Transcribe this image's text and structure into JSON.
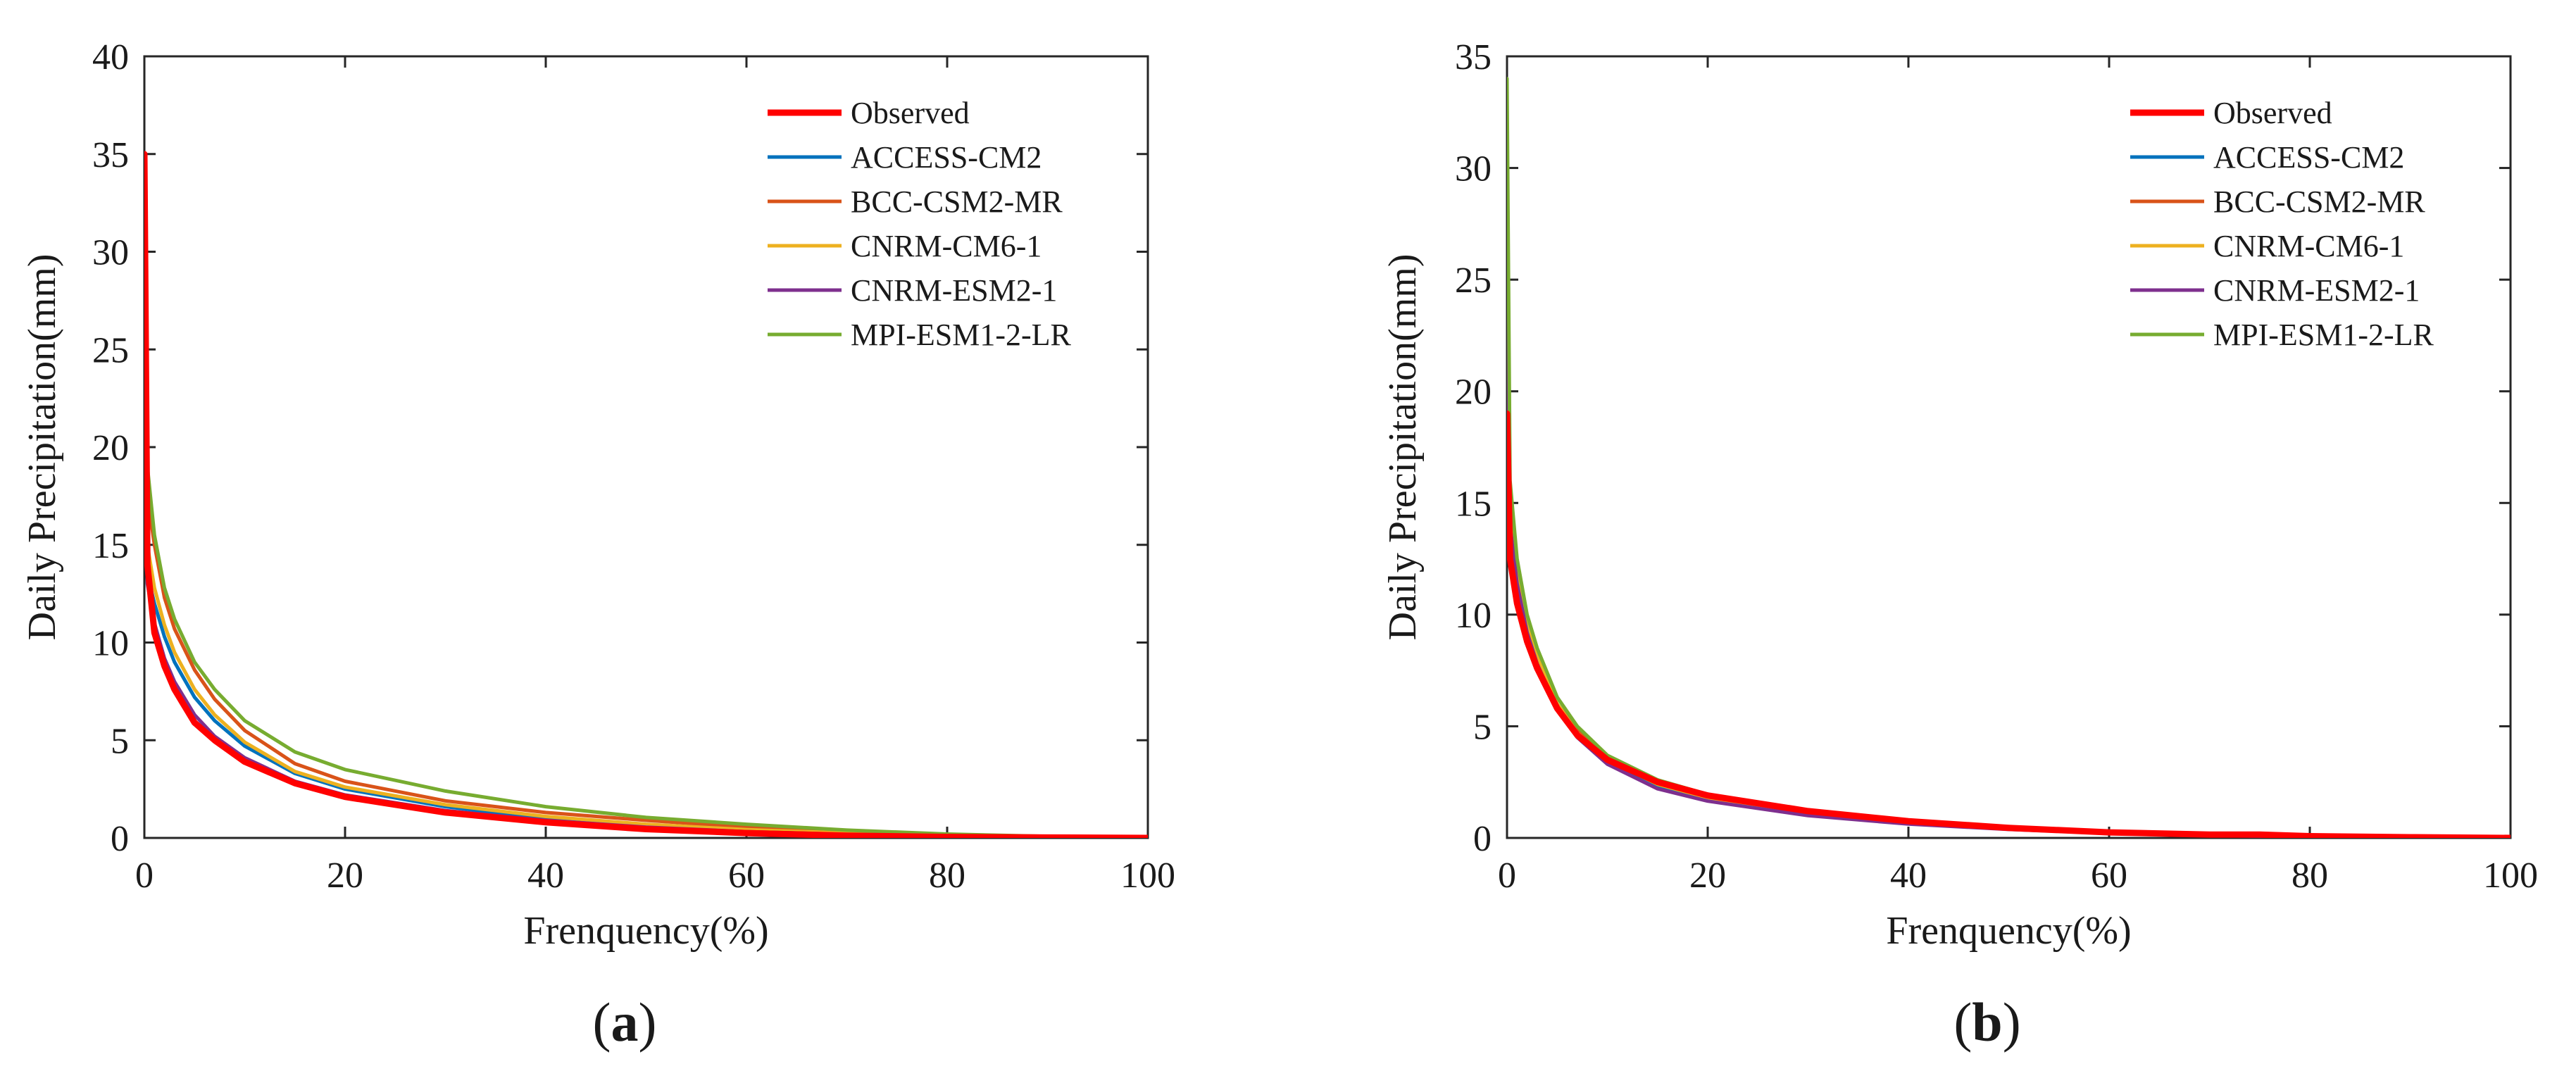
{
  "chart_data": [
    {
      "type": "line",
      "panel_label": "a",
      "title": "",
      "xlabel": "Frenquency(%)",
      "ylabel": "Daily Precipitation(mm)",
      "xlim": [
        0,
        100
      ],
      "ylim": [
        0,
        40
      ],
      "xticks": [
        0,
        20,
        40,
        60,
        80,
        100
      ],
      "yticks": [
        0,
        5,
        10,
        15,
        20,
        25,
        30,
        35,
        40
      ],
      "grid": false,
      "legend_position": "top-right",
      "series": [
        {
          "name": "Observed",
          "color": "#ff0000",
          "bold": true,
          "x": [
            0,
            0.3,
            1,
            2,
            3,
            5,
            7,
            10,
            15,
            20,
            30,
            40,
            50,
            60,
            70,
            80,
            90,
            100
          ],
          "y": [
            35,
            14,
            10.5,
            8.8,
            7.6,
            5.9,
            5.0,
            3.9,
            2.8,
            2.1,
            1.3,
            0.8,
            0.45,
            0.25,
            0.12,
            0.05,
            0.02,
            0.0
          ]
        },
        {
          "name": "ACCESS-CM2",
          "color": "#0072bd",
          "x": [
            0,
            0.3,
            1,
            2,
            3,
            5,
            7,
            10,
            15,
            20,
            30,
            40,
            50,
            60,
            70,
            80,
            90,
            100
          ],
          "y": [
            16,
            13.5,
            12.0,
            10.3,
            9.0,
            7.2,
            6.0,
            4.7,
            3.3,
            2.5,
            1.6,
            1.0,
            0.6,
            0.35,
            0.2,
            0.1,
            0.04,
            0.0
          ]
        },
        {
          "name": "BCC-CSM2-MR",
          "color": "#d95319",
          "x": [
            0,
            0.3,
            1,
            2,
            3,
            5,
            7,
            10,
            15,
            20,
            30,
            40,
            50,
            60,
            70,
            80,
            90,
            100
          ],
          "y": [
            23,
            17.5,
            15.0,
            12.3,
            10.7,
            8.6,
            7.1,
            5.5,
            3.8,
            2.9,
            1.9,
            1.3,
            0.9,
            0.55,
            0.32,
            0.15,
            0.06,
            0.0
          ]
        },
        {
          "name": "CNRM-CM6-1",
          "color": "#edb120",
          "x": [
            0,
            0.3,
            1,
            2,
            3,
            5,
            7,
            10,
            15,
            20,
            30,
            40,
            50,
            60,
            70,
            80,
            90,
            100
          ],
          "y": [
            20,
            15.0,
            12.8,
            10.9,
            9.5,
            7.6,
            6.3,
            4.9,
            3.4,
            2.6,
            1.7,
            1.1,
            0.7,
            0.42,
            0.25,
            0.12,
            0.05,
            0.0
          ]
        },
        {
          "name": "CNRM-ESM2-1",
          "color": "#7e2f8e",
          "x": [
            0,
            0.3,
            1,
            2,
            3,
            5,
            7,
            10,
            15,
            20,
            30,
            40,
            50,
            60,
            70,
            80,
            90,
            100
          ],
          "y": [
            18,
            13.0,
            11.0,
            9.2,
            8.0,
            6.3,
            5.2,
            4.1,
            2.9,
            2.2,
            1.4,
            0.9,
            0.55,
            0.32,
            0.18,
            0.08,
            0.03,
            0.0
          ]
        },
        {
          "name": "MPI-ESM1-2-LR",
          "color": "#77ac30",
          "x": [
            0,
            0.3,
            1,
            2,
            3,
            5,
            7,
            10,
            15,
            20,
            30,
            40,
            50,
            60,
            70,
            80,
            90,
            100
          ],
          "y": [
            30,
            19.0,
            15.5,
            12.8,
            11.2,
            9.0,
            7.6,
            6.0,
            4.4,
            3.5,
            2.4,
            1.6,
            1.05,
            0.7,
            0.4,
            0.2,
            0.08,
            0.0
          ]
        }
      ]
    },
    {
      "type": "line",
      "panel_label": "b",
      "title": "",
      "xlabel": "Frenquency(%)",
      "ylabel": "Daily Precipitation(mm)",
      "xlim": [
        0,
        100
      ],
      "ylim": [
        0,
        35
      ],
      "xticks": [
        0,
        20,
        40,
        60,
        80,
        100
      ],
      "yticks": [
        0,
        5,
        10,
        15,
        20,
        25,
        30,
        35
      ],
      "grid": false,
      "legend_position": "top-right",
      "series": [
        {
          "name": "Observed",
          "color": "#ff0000",
          "bold": true,
          "x": [
            0,
            0.3,
            1,
            2,
            3,
            5,
            7,
            10,
            15,
            20,
            30,
            40,
            50,
            60,
            70,
            75,
            80,
            90,
            100
          ],
          "y": [
            19,
            12.5,
            10.5,
            8.8,
            7.6,
            5.8,
            4.6,
            3.5,
            2.5,
            1.9,
            1.2,
            0.75,
            0.45,
            0.25,
            0.15,
            0.15,
            0.08,
            0.03,
            0.0
          ]
        },
        {
          "name": "ACCESS-CM2",
          "color": "#0072bd",
          "x": [
            0,
            0.3,
            1,
            2,
            3,
            5,
            7,
            10,
            15,
            20,
            30,
            40,
            50,
            60,
            70,
            80,
            90,
            100
          ],
          "y": [
            24,
            14.0,
            11.5,
            9.3,
            7.9,
            5.9,
            4.6,
            3.4,
            2.3,
            1.7,
            1.05,
            0.65,
            0.4,
            0.22,
            0.12,
            0.05,
            0.02,
            0.0
          ]
        },
        {
          "name": "BCC-CSM2-MR",
          "color": "#d95319",
          "x": [
            0,
            0.3,
            1,
            2,
            3,
            5,
            7,
            10,
            15,
            20,
            30,
            40,
            50,
            60,
            70,
            80,
            90,
            100
          ],
          "y": [
            22,
            13.5,
            11.3,
            9.3,
            8.0,
            6.0,
            4.8,
            3.6,
            2.5,
            1.9,
            1.2,
            0.75,
            0.48,
            0.28,
            0.15,
            0.07,
            0.03,
            0.0
          ]
        },
        {
          "name": "CNRM-CM6-1",
          "color": "#edb120",
          "x": [
            0,
            0.3,
            1,
            2,
            3,
            5,
            7,
            10,
            15,
            20,
            30,
            40,
            50,
            60,
            70,
            80,
            90,
            100
          ],
          "y": [
            26,
            14.5,
            11.8,
            9.5,
            8.1,
            6.0,
            4.7,
            3.5,
            2.4,
            1.8,
            1.1,
            0.7,
            0.42,
            0.24,
            0.13,
            0.06,
            0.02,
            0.0
          ]
        },
        {
          "name": "CNRM-ESM2-1",
          "color": "#7e2f8e",
          "x": [
            0,
            0.3,
            1,
            2,
            3,
            5,
            7,
            10,
            15,
            20,
            30,
            40,
            50,
            60,
            70,
            80,
            90,
            100
          ],
          "y": [
            25,
            14.0,
            11.4,
            9.2,
            7.8,
            5.8,
            4.5,
            3.3,
            2.2,
            1.65,
            1.0,
            0.62,
            0.38,
            0.21,
            0.11,
            0.05,
            0.02,
            0.0
          ]
        },
        {
          "name": "MPI-ESM1-2-LR",
          "color": "#77ac30",
          "x": [
            0,
            0.3,
            1,
            2,
            3,
            5,
            7,
            10,
            15,
            20,
            30,
            40,
            50,
            60,
            70,
            80,
            90,
            100
          ],
          "y": [
            34,
            16.0,
            12.5,
            10.0,
            8.5,
            6.3,
            5.0,
            3.7,
            2.6,
            1.95,
            1.2,
            0.75,
            0.45,
            0.26,
            0.14,
            0.06,
            0.02,
            0.0
          ]
        }
      ]
    }
  ]
}
